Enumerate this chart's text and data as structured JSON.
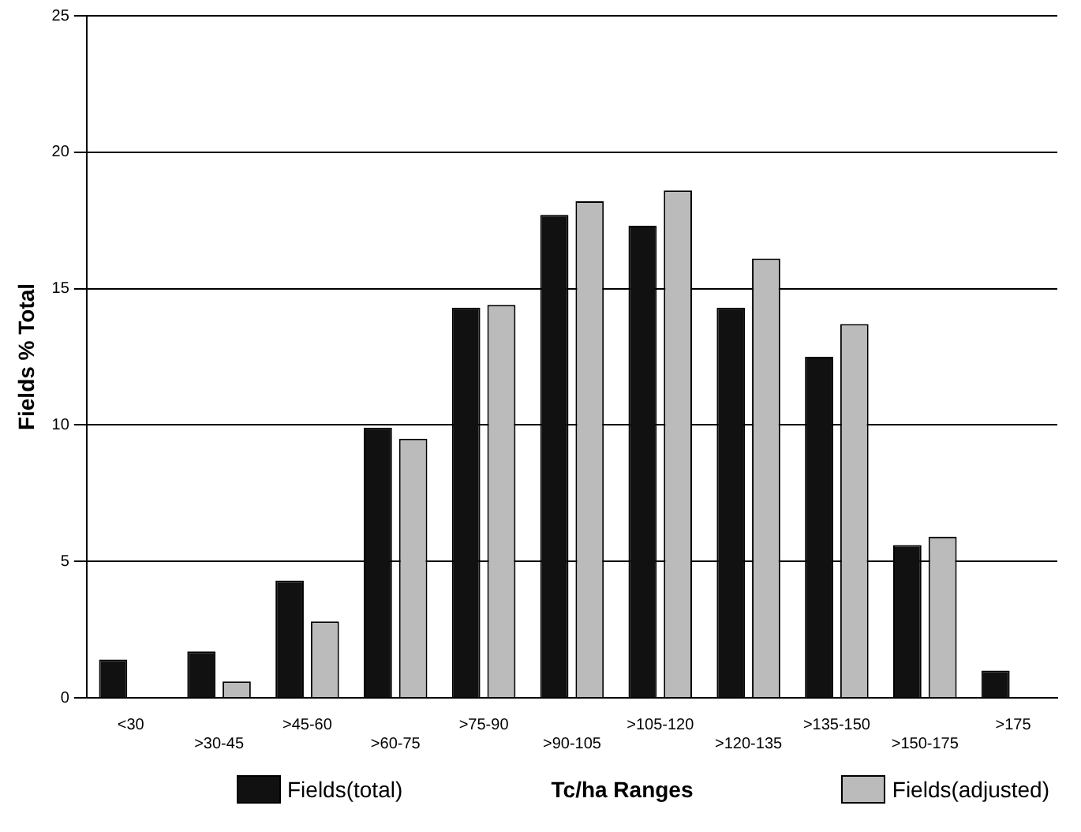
{
  "chart_data": {
    "type": "bar",
    "xlabel": "Tc/ha Ranges",
    "ylabel": "Fields % Total",
    "categories": [
      "<30",
      ">30-45",
      ">45-60",
      ">60-75",
      ">75-90",
      ">90-105",
      ">105-120",
      ">120-135",
      ">135-150",
      ">150-175",
      ">175"
    ],
    "series": [
      {
        "name": "Fields(total)",
        "color": "#111111",
        "values": [
          1.4,
          1.7,
          4.3,
          9.9,
          14.3,
          17.7,
          17.3,
          14.3,
          12.5,
          5.6,
          1.0
        ]
      },
      {
        "name": "Fields(adjusted)",
        "color": "#bbbbbb",
        "values": [
          null,
          0.6,
          2.8,
          9.5,
          14.4,
          18.2,
          18.6,
          16.1,
          13.7,
          5.9,
          null
        ]
      }
    ],
    "ylim": [
      0,
      25
    ],
    "yticks": [
      0,
      5,
      10,
      15,
      20,
      25
    ],
    "grid": "y",
    "legend": "bottom"
  }
}
